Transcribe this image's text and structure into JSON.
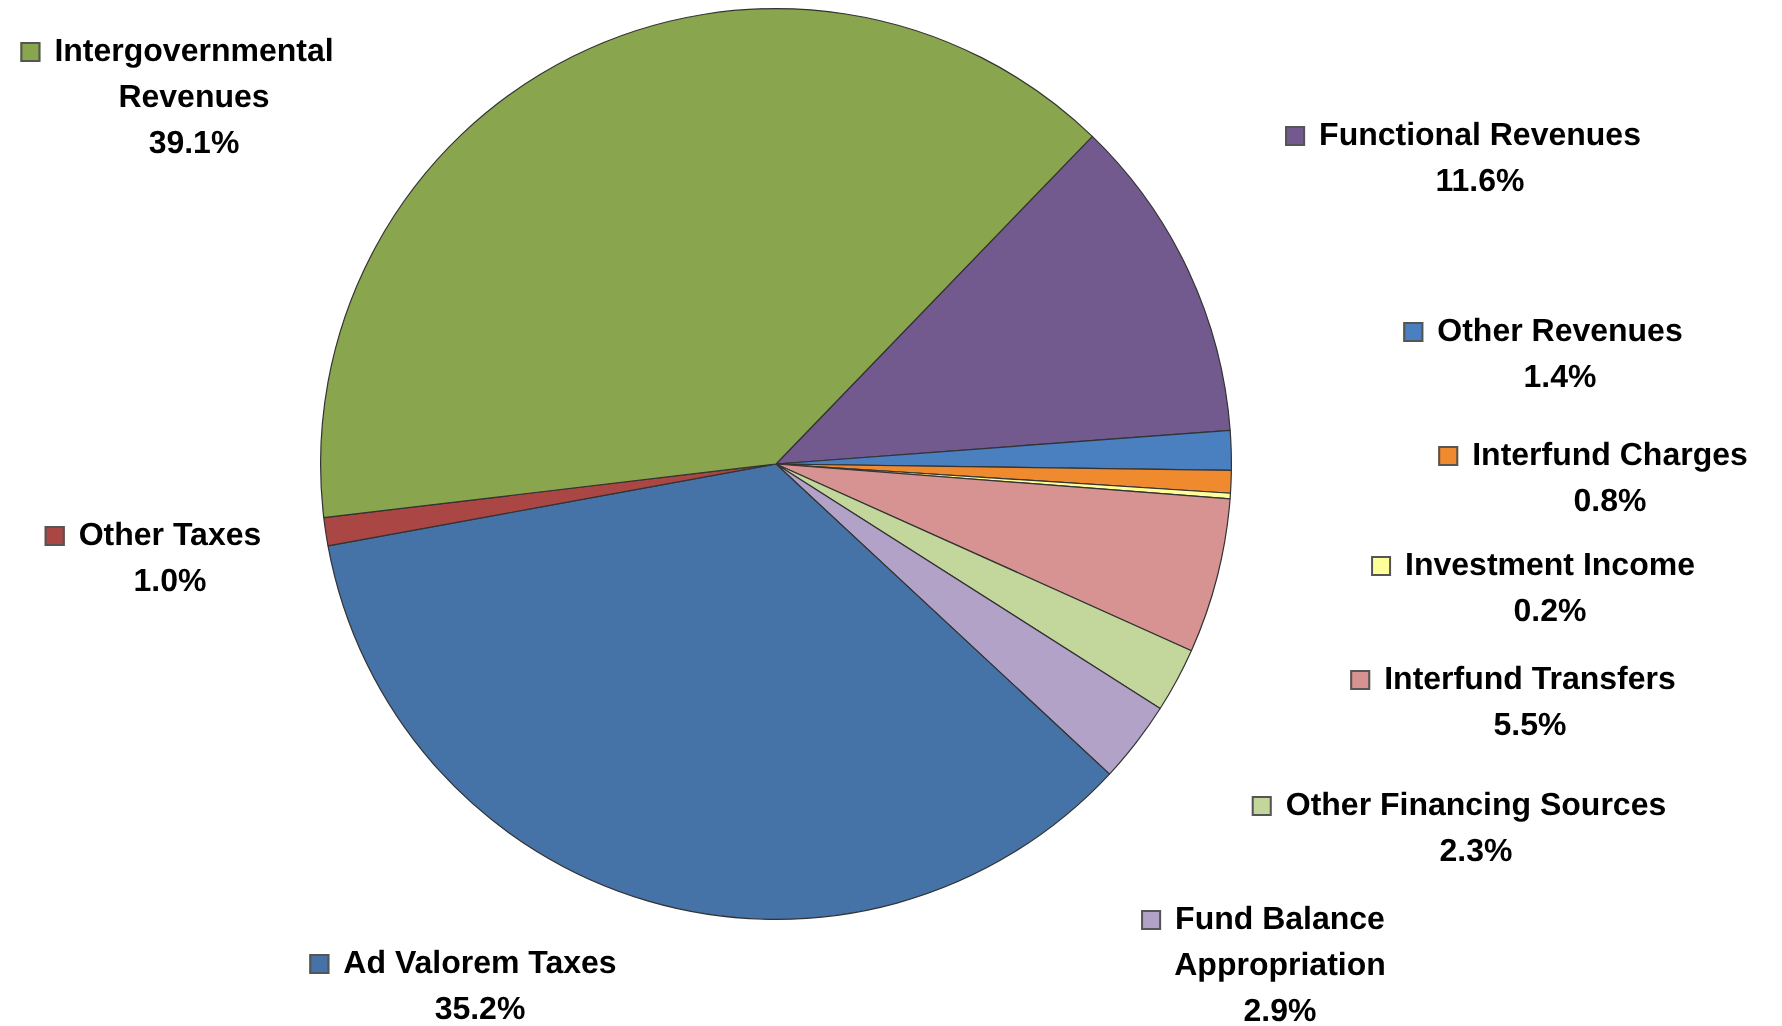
{
  "chart_data": {
    "type": "pie",
    "categories": [
      "Functional Revenues",
      "Other Revenues",
      "Interfund Charges",
      "Investment Income",
      "Interfund Transfers",
      "Other Financing Sources",
      "Fund Balance Appropriation",
      "Ad Valorem Taxes",
      "Other Taxes",
      "Intergovernmental Revenues"
    ],
    "values": [
      11.6,
      1.4,
      0.8,
      0.2,
      5.5,
      2.3,
      2.9,
      35.2,
      1.0,
      39.1
    ],
    "value_labels": [
      "11.6%",
      "1.4%",
      "0.8%",
      "0.2%",
      "5.5%",
      "2.3%",
      "2.9%",
      "35.2%",
      "1.0%",
      "39.1%"
    ],
    "colors": [
      "#725a8f",
      "#4a7fc0",
      "#f08a2e",
      "#ffff99",
      "#d69391",
      "#c3d69b",
      "#b3a2c7",
      "#4572a7",
      "#aa4643",
      "#89a54e"
    ],
    "legend": "right"
  }
}
